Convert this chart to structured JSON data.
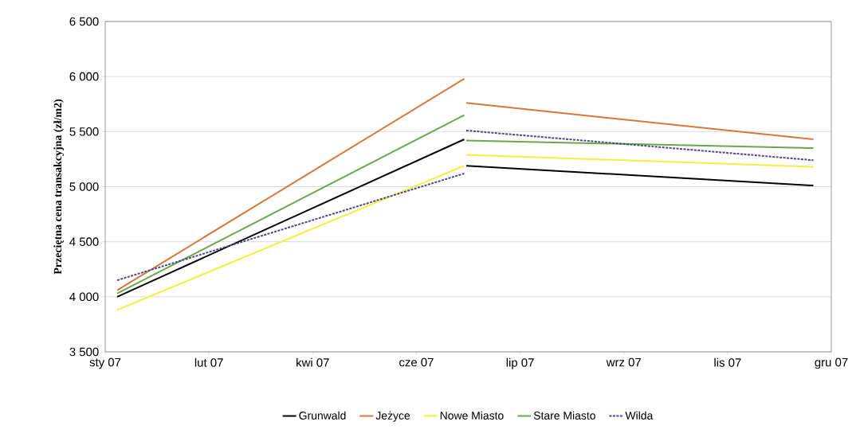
{
  "chart_data": {
    "type": "line",
    "ylabel": "Przeciętna cena transakcyjna (zł/m2)",
    "x": [
      "2007-01-07",
      "2007-06-30",
      "2007-06-30T12:00",
      "2007-07-01",
      "2007-12-22"
    ],
    "series": [
      {
        "name": "Grunwald",
        "color": "#000000",
        "values": [
          4000,
          5430,
          null,
          5190,
          5010
        ]
      },
      {
        "name": "Jeżyce",
        "color": "#d9773b",
        "values": [
          4060,
          5980,
          null,
          5760,
          5430
        ]
      },
      {
        "name": "Nowe Miasto",
        "color": "#f0f040",
        "values": [
          3880,
          5190,
          null,
          5290,
          5180
        ]
      },
      {
        "name": "Stare Miasto",
        "color": "#6aa84f",
        "values": [
          4030,
          5650,
          null,
          5420,
          5350
        ]
      },
      {
        "name": "Wilda",
        "color": "#4a4a8a",
        "line_style": "dashed",
        "values": [
          4150,
          5120,
          null,
          5510,
          5240
        ]
      }
    ],
    "xlim": [
      "2007-01-01",
      "2007-12-31"
    ],
    "xticks": [
      {
        "value": "2007-01-01",
        "label": "sty 07"
      },
      {
        "value": "2007-02-22",
        "label": "lut 07"
      },
      {
        "value": "2007-04-15",
        "label": "kwi 07"
      },
      {
        "value": "2007-06-06",
        "label": "cze 07"
      },
      {
        "value": "2007-07-28",
        "label": "lip 07"
      },
      {
        "value": "2007-09-18",
        "label": "wrz 07"
      },
      {
        "value": "2007-11-09",
        "label": "lis 07"
      },
      {
        "value": "2007-12-31",
        "label": "gru 07"
      }
    ],
    "ylim": [
      3500,
      6500
    ],
    "yticks": [
      {
        "value": 3500,
        "label": "3 500"
      },
      {
        "value": 4000,
        "label": "4 000"
      },
      {
        "value": 4500,
        "label": "4 500"
      },
      {
        "value": 5000,
        "label": "5 000"
      },
      {
        "value": 5500,
        "label": "5 500"
      },
      {
        "value": 6000,
        "label": "6 000"
      },
      {
        "value": 6500,
        "label": "6 500"
      }
    ],
    "grid": "y",
    "legend": "bottom",
    "marker": "none",
    "line_style": "solid"
  }
}
